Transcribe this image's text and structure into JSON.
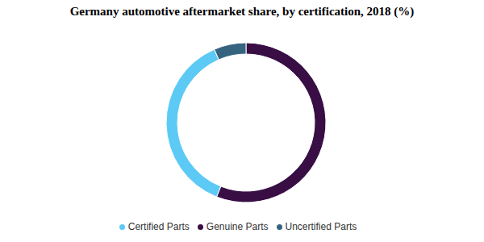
{
  "chart_data": {
    "type": "pie",
    "title": "Germany automotive aftermarket share, by certification, 2018 (%)",
    "categories": [
      "Genuine Parts",
      "Certified Parts",
      "Uncertified Parts"
    ],
    "values": [
      56,
      37.5,
      6.5
    ],
    "colors": [
      "#380e45",
      "#5ccaf5",
      "#366480"
    ],
    "legend": "bottom"
  }
}
